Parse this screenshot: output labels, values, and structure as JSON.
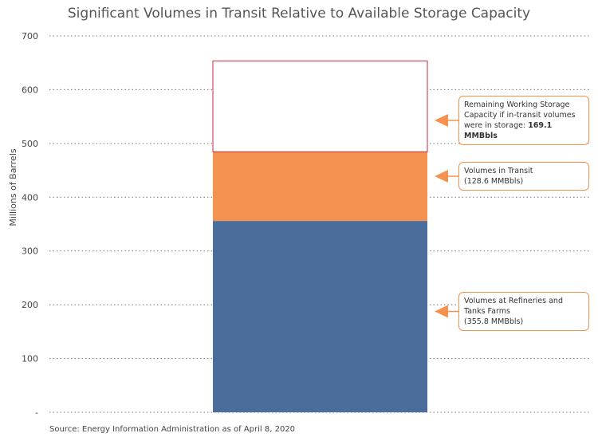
{
  "chart_data": {
    "type": "stacked-bar",
    "title": "Significant Volumes in Transit Relative to Available Storage Capacity",
    "y_label": "Millions of Barrels",
    "source": "Source: Energy Information Administration as of April 8, 2020",
    "categories": [
      null
    ],
    "series": [
      {
        "name": "Volumes at Refineries and Tanks Farms",
        "color": "#4a6d9c",
        "values": [
          355.8
        ],
        "value_labels": [
          "(355.8 MMBbls)"
        ]
      },
      {
        "name": "Volumes in Transit",
        "color": "#f5924f",
        "values": [
          128.6
        ],
        "value_labels": [
          "(128.6 MMBbls)"
        ]
      },
      {
        "name": "Remaining Working Storage Capacity if in-transit volumes were in storage:",
        "color": "#c8283c",
        "values": [
          169.1
        ],
        "value_labels": [
          "169.1 MMBbls"
        ]
      }
    ],
    "ylim": [
      0,
      700
    ],
    "yticks": [
      {
        "value": 0,
        "label": "-"
      },
      100,
      200,
      300,
      400,
      500,
      600,
      700
    ],
    "grid": true
  }
}
